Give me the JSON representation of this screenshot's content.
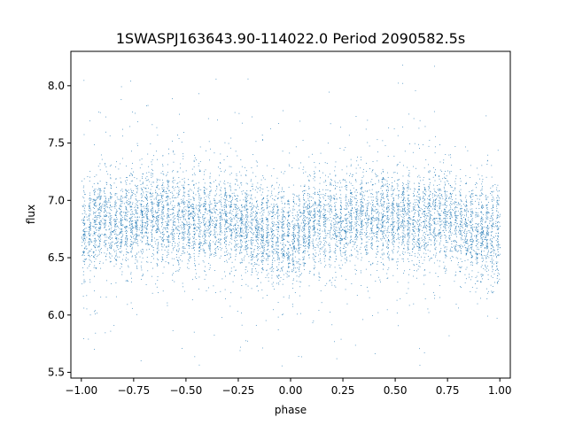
{
  "chart_data": {
    "type": "scatter",
    "title": "1SWASPJ163643.90-114022.0 Period 2090582.5s",
    "xlabel": "phase",
    "ylabel": "flux",
    "xlim": [
      -1.05,
      1.05
    ],
    "ylim": [
      5.45,
      8.3
    ],
    "x_ticks": [
      -1.0,
      -0.75,
      -0.5,
      -0.25,
      0.0,
      0.25,
      0.5,
      0.75,
      1.0
    ],
    "x_tick_labels": [
      "−1.00",
      "−0.75",
      "−0.50",
      "−0.25",
      "0.00",
      "0.25",
      "0.50",
      "0.75",
      "1.00"
    ],
    "y_ticks": [
      5.5,
      6.0,
      6.5,
      7.0,
      7.5,
      8.0
    ],
    "y_tick_labels": [
      "5.5",
      "6.0",
      "6.5",
      "7.0",
      "7.5",
      "8.0"
    ],
    "grid": false,
    "legend": "none",
    "marker_color": "#1f77b4",
    "phase_profile": {
      "x": [
        -1.0,
        -0.9,
        -0.8,
        -0.7,
        -0.6,
        -0.5,
        -0.4,
        -0.3,
        -0.2,
        -0.1,
        0.0,
        0.1,
        0.2,
        0.3,
        0.4,
        0.5,
        0.6,
        0.7,
        0.8,
        0.9,
        1.0
      ],
      "median_flux": [
        6.75,
        6.85,
        6.8,
        6.85,
        6.85,
        6.85,
        6.8,
        6.9,
        6.75,
        6.72,
        6.68,
        6.85,
        6.8,
        6.85,
        6.85,
        6.85,
        6.8,
        6.9,
        6.75,
        6.72,
        6.68
      ],
      "spread": 0.2
    },
    "n_points": 9000,
    "outlier_range": [
      5.55,
      8.2
    ]
  }
}
